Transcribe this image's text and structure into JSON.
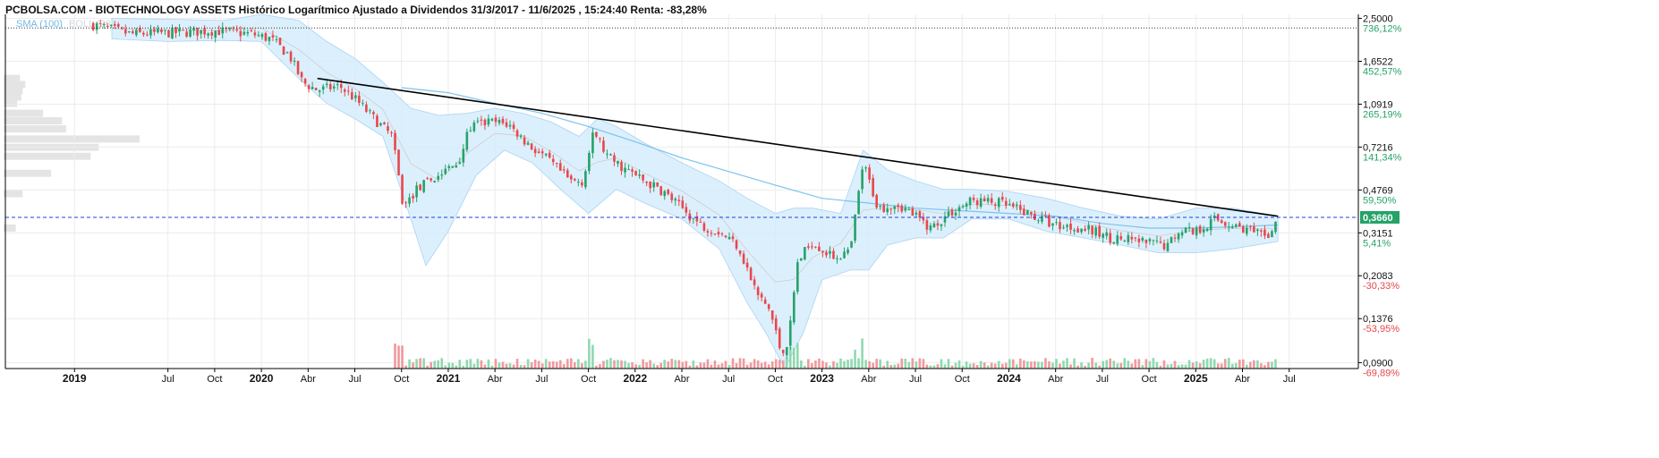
{
  "title": "PCBOLSA.COM - BIOTECHNOLOGY ASSETS Histórico Logarítmico Ajustado a Dividendos 31/3/2017 - 11/6/2025 , 15:24:40 Renta: -83,28%",
  "legend": {
    "sma_label": "SMA (100)",
    "boll_label": "BOLL (20)"
  },
  "colors": {
    "up": "#26a269",
    "down": "#e8474c",
    "sma": "#7cc3ec",
    "band_fill": "#d6ecfb",
    "trendline": "#000000",
    "current_line": "#1f3fe0",
    "current_box": "#26a269"
  },
  "chart_data": {
    "type": "candlestick",
    "y_scale": "log",
    "ylim": [
      0.085,
      2.6
    ],
    "y_ticks": [
      {
        "price": 2.5,
        "label": "2,5000",
        "pct": "736,12%",
        "pct_color": "up"
      },
      {
        "price": 1.6522,
        "label": "1,6522",
        "pct": "452,57%",
        "pct_color": "up"
      },
      {
        "price": 1.0919,
        "label": "1,0919",
        "pct": "265,19%",
        "pct_color": "up"
      },
      {
        "price": 0.7216,
        "label": "0,7216",
        "pct": "141,34%",
        "pct_color": "up"
      },
      {
        "price": 0.4769,
        "label": "0,4769",
        "pct": "59,50%",
        "pct_color": "up"
      },
      {
        "price": 0.3151,
        "label": "0,3151",
        "pct": "5,41%",
        "pct_color": "up"
      },
      {
        "price": 0.2083,
        "label": "0,2083",
        "pct": "-30,33%",
        "pct_color": "down"
      },
      {
        "price": 0.1376,
        "label": "0,1376",
        "pct": "-53,95%",
        "pct_color": "down"
      },
      {
        "price": 0.09,
        "label": "0,0900",
        "pct": "-69,89%",
        "pct_color": "down"
      }
    ],
    "current_price": {
      "value": 0.366,
      "label": "0,3660"
    },
    "max_line_price": 2.28,
    "x_ticks": [
      {
        "t": 2019.0,
        "label": "2019",
        "major": true
      },
      {
        "t": 2019.5,
        "label": "Jul",
        "major": false
      },
      {
        "t": 2019.75,
        "label": "Oct",
        "major": false
      },
      {
        "t": 2020.0,
        "label": "2020",
        "major": true
      },
      {
        "t": 2020.25,
        "label": "Abr",
        "major": false
      },
      {
        "t": 2020.5,
        "label": "Jul",
        "major": false
      },
      {
        "t": 2020.75,
        "label": "Oct",
        "major": false
      },
      {
        "t": 2021.0,
        "label": "2021",
        "major": true
      },
      {
        "t": 2021.25,
        "label": "Abr",
        "major": false
      },
      {
        "t": 2021.5,
        "label": "Jul",
        "major": false
      },
      {
        "t": 2021.75,
        "label": "Oct",
        "major": false
      },
      {
        "t": 2022.0,
        "label": "2022",
        "major": true
      },
      {
        "t": 2022.25,
        "label": "Abr",
        "major": false
      },
      {
        "t": 2022.5,
        "label": "Jul",
        "major": false
      },
      {
        "t": 2022.75,
        "label": "Oct",
        "major": false
      },
      {
        "t": 2023.0,
        "label": "2023",
        "major": true
      },
      {
        "t": 2023.25,
        "label": "Abr",
        "major": false
      },
      {
        "t": 2023.5,
        "label": "Jul",
        "major": false
      },
      {
        "t": 2023.75,
        "label": "Oct",
        "major": false
      },
      {
        "t": 2024.0,
        "label": "2024",
        "major": true
      },
      {
        "t": 2024.25,
        "label": "Abr",
        "major": false
      },
      {
        "t": 2024.5,
        "label": "Jul",
        "major": false
      },
      {
        "t": 2024.75,
        "label": "Oct",
        "major": false
      },
      {
        "t": 2025.0,
        "label": "2025",
        "major": true
      },
      {
        "t": 2025.25,
        "label": "Abr",
        "major": false
      },
      {
        "t": 2025.5,
        "label": "Jul",
        "major": false
      }
    ],
    "price_path": [
      [
        2019.1,
        2.35
      ],
      [
        2019.3,
        2.15
      ],
      [
        2019.55,
        2.18
      ],
      [
        2019.75,
        2.22
      ],
      [
        2019.95,
        2.15
      ],
      [
        2020.05,
        2.05
      ],
      [
        2020.15,
        1.75
      ],
      [
        2020.22,
        1.35
      ],
      [
        2020.3,
        1.25
      ],
      [
        2020.42,
        1.3
      ],
      [
        2020.5,
        1.15
      ],
      [
        2020.62,
        0.92
      ],
      [
        2020.7,
        0.8
      ],
      [
        2020.76,
        0.4
      ],
      [
        2020.83,
        0.48
      ],
      [
        2020.95,
        0.55
      ],
      [
        2021.05,
        0.62
      ],
      [
        2021.12,
        0.88
      ],
      [
        2021.22,
        0.92
      ],
      [
        2021.32,
        0.9
      ],
      [
        2021.42,
        0.75
      ],
      [
        2021.55,
        0.62
      ],
      [
        2021.65,
        0.52
      ],
      [
        2021.72,
        0.52
      ],
      [
        2021.78,
        0.84
      ],
      [
        2021.85,
        0.66
      ],
      [
        2021.95,
        0.58
      ],
      [
        2022.05,
        0.52
      ],
      [
        2022.15,
        0.47
      ],
      [
        2022.25,
        0.4
      ],
      [
        2022.35,
        0.34
      ],
      [
        2022.45,
        0.32
      ],
      [
        2022.55,
        0.28
      ],
      [
        2022.65,
        0.175
      ],
      [
        2022.72,
        0.15
      ],
      [
        2022.78,
        0.1
      ],
      [
        2022.82,
        0.11
      ],
      [
        2022.87,
        0.24
      ],
      [
        2022.95,
        0.29
      ],
      [
        2023.05,
        0.25
      ],
      [
        2023.15,
        0.26
      ],
      [
        2023.22,
        0.62
      ],
      [
        2023.3,
        0.4
      ],
      [
        2023.4,
        0.42
      ],
      [
        2023.5,
        0.37
      ],
      [
        2023.58,
        0.33
      ],
      [
        2023.68,
        0.38
      ],
      [
        2023.8,
        0.43
      ],
      [
        2023.95,
        0.42
      ],
      [
        2024.1,
        0.38
      ],
      [
        2024.25,
        0.34
      ],
      [
        2024.4,
        0.33
      ],
      [
        2024.55,
        0.3
      ],
      [
        2024.7,
        0.29
      ],
      [
        2024.85,
        0.28
      ],
      [
        2024.92,
        0.33
      ],
      [
        2025.0,
        0.32
      ],
      [
        2025.1,
        0.36
      ],
      [
        2025.25,
        0.33
      ],
      [
        2025.38,
        0.3
      ],
      [
        2025.44,
        0.366
      ]
    ],
    "sma_path": [
      [
        2020.75,
        1.28
      ],
      [
        2021.0,
        1.22
      ],
      [
        2021.25,
        1.1
      ],
      [
        2021.5,
        1.0
      ],
      [
        2021.75,
        0.88
      ],
      [
        2022.0,
        0.76
      ],
      [
        2022.25,
        0.65
      ],
      [
        2022.5,
        0.57
      ],
      [
        2022.75,
        0.5
      ],
      [
        2023.0,
        0.44
      ],
      [
        2023.25,
        0.42
      ],
      [
        2023.5,
        0.4
      ],
      [
        2023.75,
        0.39
      ],
      [
        2024.0,
        0.38
      ],
      [
        2024.25,
        0.37
      ],
      [
        2024.5,
        0.345
      ],
      [
        2024.75,
        0.33
      ],
      [
        2025.0,
        0.33
      ],
      [
        2025.25,
        0.335
      ],
      [
        2025.44,
        0.34
      ]
    ],
    "band_upper": [
      [
        2019.2,
        2.5
      ],
      [
        2019.5,
        2.48
      ],
      [
        2019.8,
        2.45
      ],
      [
        2020.0,
        2.6
      ],
      [
        2020.2,
        2.45
      ],
      [
        2020.35,
        2.0
      ],
      [
        2020.5,
        1.7
      ],
      [
        2020.65,
        1.35
      ],
      [
        2020.8,
        1.05
      ],
      [
        2020.95,
        0.98
      ],
      [
        2021.1,
        1.0
      ],
      [
        2021.25,
        1.05
      ],
      [
        2021.4,
        1.0
      ],
      [
        2021.55,
        0.92
      ],
      [
        2021.7,
        0.8
      ],
      [
        2021.8,
        0.95
      ],
      [
        2021.9,
        0.88
      ],
      [
        2022.05,
        0.75
      ],
      [
        2022.25,
        0.62
      ],
      [
        2022.45,
        0.52
      ],
      [
        2022.6,
        0.44
      ],
      [
        2022.75,
        0.38
      ],
      [
        2022.85,
        0.4
      ],
      [
        2022.95,
        0.4
      ],
      [
        2023.1,
        0.38
      ],
      [
        2023.22,
        0.7
      ],
      [
        2023.35,
        0.58
      ],
      [
        2023.5,
        0.52
      ],
      [
        2023.65,
        0.48
      ],
      [
        2023.8,
        0.48
      ],
      [
        2024.0,
        0.47
      ],
      [
        2024.2,
        0.44
      ],
      [
        2024.4,
        0.4
      ],
      [
        2024.6,
        0.37
      ],
      [
        2024.8,
        0.36
      ],
      [
        2025.0,
        0.4
      ],
      [
        2025.2,
        0.4
      ],
      [
        2025.44,
        0.37
      ]
    ],
    "band_lower": [
      [
        2019.2,
        2.05
      ],
      [
        2019.5,
        2.0
      ],
      [
        2019.8,
        2.02
      ],
      [
        2020.0,
        2.0
      ],
      [
        2020.2,
        1.4
      ],
      [
        2020.35,
        1.1
      ],
      [
        2020.5,
        0.95
      ],
      [
        2020.65,
        0.8
      ],
      [
        2020.8,
        0.36
      ],
      [
        2020.88,
        0.23
      ],
      [
        2021.0,
        0.32
      ],
      [
        2021.15,
        0.55
      ],
      [
        2021.3,
        0.7
      ],
      [
        2021.45,
        0.62
      ],
      [
        2021.6,
        0.48
      ],
      [
        2021.75,
        0.38
      ],
      [
        2021.9,
        0.48
      ],
      [
        2022.05,
        0.42
      ],
      [
        2022.25,
        0.36
      ],
      [
        2022.45,
        0.27
      ],
      [
        2022.6,
        0.16
      ],
      [
        2022.7,
        0.12
      ],
      [
        2022.8,
        0.085
      ],
      [
        2022.9,
        0.12
      ],
      [
        2023.0,
        0.2
      ],
      [
        2023.15,
        0.22
      ],
      [
        2023.25,
        0.22
      ],
      [
        2023.35,
        0.28
      ],
      [
        2023.5,
        0.3
      ],
      [
        2023.65,
        0.3
      ],
      [
        2023.8,
        0.36
      ],
      [
        2024.0,
        0.36
      ],
      [
        2024.2,
        0.32
      ],
      [
        2024.4,
        0.3
      ],
      [
        2024.6,
        0.28
      ],
      [
        2024.8,
        0.26
      ],
      [
        2025.0,
        0.26
      ],
      [
        2025.2,
        0.27
      ],
      [
        2025.44,
        0.29
      ]
    ],
    "trendline": {
      "x1": 2020.3,
      "y1": 1.4,
      "x2": 2025.44,
      "y2": 0.37
    },
    "volume_profile": [
      {
        "price": 1.4,
        "weight": 0.12
      },
      {
        "price": 1.32,
        "weight": 0.16
      },
      {
        "price": 1.24,
        "weight": 0.14
      },
      {
        "price": 1.17,
        "weight": 0.13
      },
      {
        "price": 1.1,
        "weight": 0.1
      },
      {
        "price": 1.0,
        "weight": 0.29
      },
      {
        "price": 0.93,
        "weight": 0.43
      },
      {
        "price": 0.86,
        "weight": 0.46
      },
      {
        "price": 0.78,
        "weight": 1.0
      },
      {
        "price": 0.72,
        "weight": 0.7
      },
      {
        "price": 0.66,
        "weight": 0.64
      },
      {
        "price": 0.56,
        "weight": 0.35
      },
      {
        "price": 0.46,
        "weight": 0.14
      },
      {
        "price": 0.33,
        "weight": 0.09
      }
    ]
  }
}
